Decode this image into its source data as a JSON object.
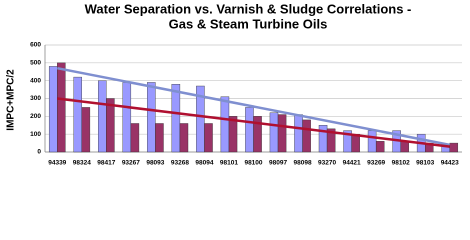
{
  "chart_data": {
    "type": "bar",
    "title": [
      "Water Separation vs. Varnish & Sludge Correlations -",
      "Gas & Steam Turbine Oils"
    ],
    "y_label": "IMPC+MPC/2",
    "categories": [
      "94339",
      "98324",
      "98417",
      "93267",
      "98093",
      "93268",
      "98094",
      "98101",
      "98100",
      "98097",
      "98098",
      "93270",
      "94421",
      "93269",
      "98102",
      "98103",
      "94423"
    ],
    "series": [
      {
        "color": "#9999ff",
        "values": [
          480,
          420,
          400,
          390,
          390,
          380,
          370,
          310,
          250,
          220,
          210,
          150,
          120,
          120,
          120,
          100,
          40
        ]
      },
      {
        "color": "#993366",
        "values": [
          500,
          250,
          300,
          160,
          160,
          160,
          160,
          200,
          200,
          210,
          180,
          130,
          100,
          60,
          60,
          50,
          50
        ]
      }
    ],
    "trendlines": [
      {
        "color": "#7f8fd0",
        "values": [
          470,
          40
        ]
      },
      {
        "color": "#b01030",
        "values": [
          300,
          30
        ]
      }
    ],
    "ylim": [
      0,
      600
    ],
    "yticks": [
      0,
      100,
      200,
      300,
      400,
      500,
      600
    ],
    "grid": true
  }
}
